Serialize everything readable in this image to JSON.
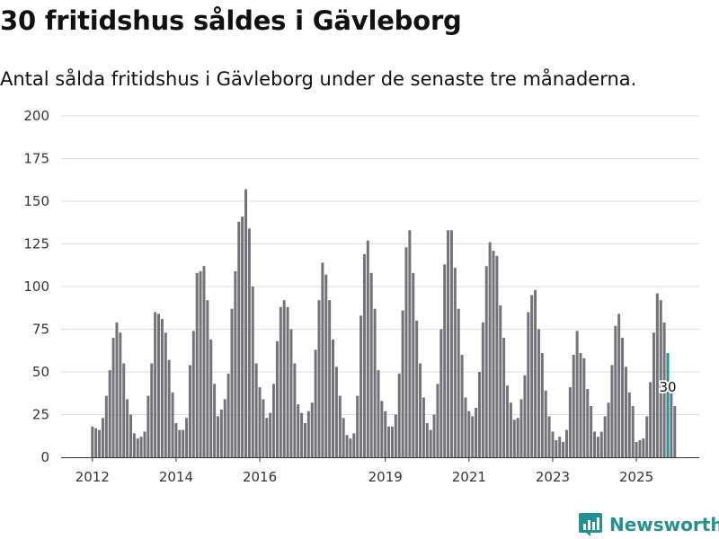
{
  "header": {
    "title": "30 fritidshus såldes i Gävleborg",
    "subtitle": "Antal sålda fritidshus i Gävleborg under de senaste tre månaderna."
  },
  "brand": {
    "name": "Newsworthy",
    "icon": "newsworthy-logo-icon",
    "color": "#239190"
  },
  "chart_data": {
    "type": "bar",
    "title": "30 fritidshus såldes i Gävleborg",
    "subtitle": "Antal sålda fritidshus i Gävleborg under de senaste tre månaderna.",
    "xlabel": "",
    "ylabel": "",
    "ylim": [
      0,
      200
    ],
    "yticks": [
      0,
      25,
      50,
      75,
      100,
      125,
      150,
      175,
      200
    ],
    "xticks": [
      "2012",
      "2014",
      "2016",
      "2019",
      "2021",
      "2023",
      "2025"
    ],
    "grid": true,
    "legend": "none",
    "bar_color": "#737278",
    "highlight_color": "#239190",
    "x_start": "2012-01",
    "x_end": "2025-10",
    "highlight": {
      "x": "2025-10",
      "value": 30,
      "label": "30"
    },
    "values": [
      18,
      17,
      16,
      23,
      36,
      51,
      70,
      79,
      73,
      55,
      34,
      25,
      14,
      11,
      12,
      15,
      36,
      55,
      85,
      84,
      81,
      73,
      57,
      38,
      20,
      16,
      16,
      23,
      54,
      74,
      108,
      109,
      112,
      92,
      69,
      43,
      24,
      28,
      34,
      49,
      87,
      109,
      138,
      141,
      157,
      134,
      100,
      55,
      41,
      34,
      23,
      26,
      43,
      68,
      88,
      92,
      88,
      75,
      55,
      31,
      26,
      20,
      27,
      32,
      63,
      92,
      114,
      107,
      92,
      69,
      53,
      36,
      23,
      13,
      11,
      14,
      36,
      83,
      119,
      127,
      108,
      87,
      51,
      33,
      27,
      18,
      18,
      25,
      49,
      86,
      123,
      133,
      108,
      80,
      55,
      35,
      20,
      16,
      25,
      43,
      75,
      113,
      133,
      133,
      111,
      87,
      60,
      35,
      27,
      24,
      29,
      50,
      79,
      112,
      126,
      121,
      118,
      89,
      70,
      42,
      32,
      22,
      23,
      34,
      48,
      85,
      95,
      98,
      75,
      61,
      39,
      24,
      15,
      10,
      12,
      9,
      16,
      41,
      60,
      74,
      61,
      58,
      40,
      30,
      15,
      12,
      15,
      24,
      32,
      54,
      77,
      84,
      70,
      53,
      38,
      30,
      9,
      10,
      11,
      24,
      44,
      73,
      96,
      92,
      79,
      61,
      38,
      30
    ]
  }
}
